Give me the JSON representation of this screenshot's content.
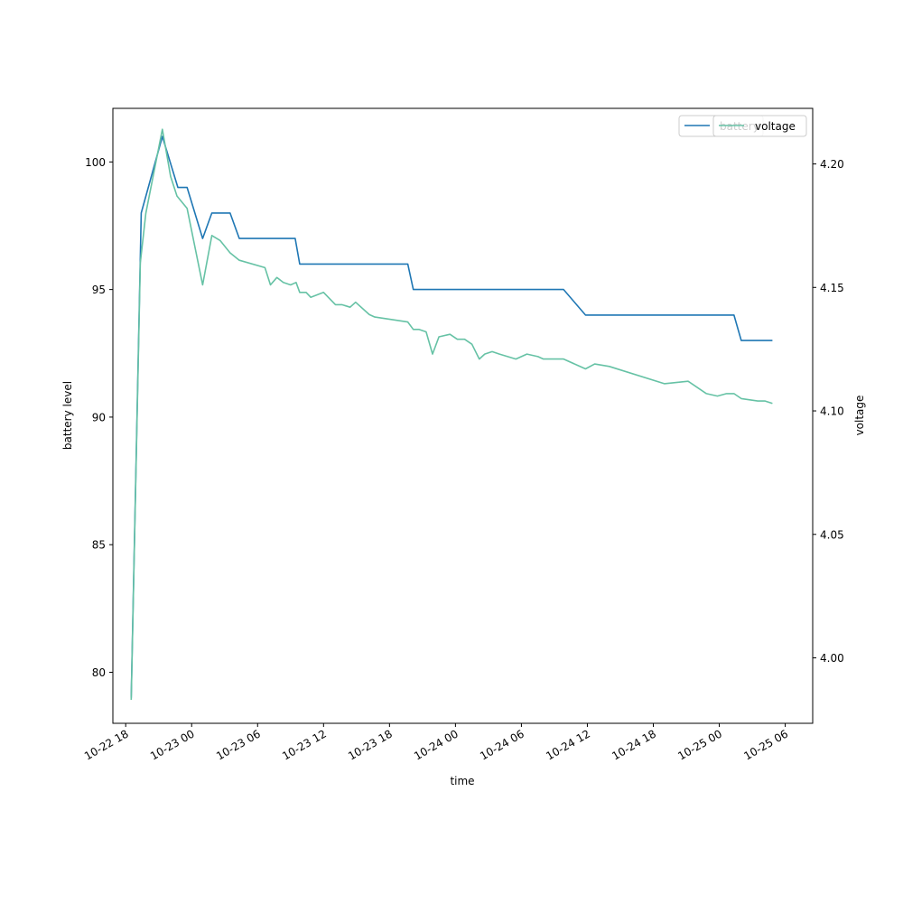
{
  "chart_data": {
    "type": "line",
    "xlabel": "time",
    "ylabel_left": "battery level",
    "ylabel_right": "voltage",
    "legend_placement": "top-right",
    "grid": false,
    "x_axis": {
      "range": [
        "2022-10-22 16:50",
        "2022-10-25 08:30"
      ],
      "ticks": [
        {
          "t": "2022-10-22 18:00",
          "label": "10-22 18"
        },
        {
          "t": "2022-10-23 00:00",
          "label": "10-23 00"
        },
        {
          "t": "2022-10-23 06:00",
          "label": "10-23 06"
        },
        {
          "t": "2022-10-23 12:00",
          "label": "10-23 12"
        },
        {
          "t": "2022-10-23 18:00",
          "label": "10-23 18"
        },
        {
          "t": "2022-10-24 00:00",
          "label": "10-24 00"
        },
        {
          "t": "2022-10-24 06:00",
          "label": "10-24 06"
        },
        {
          "t": "2022-10-24 12:00",
          "label": "10-24 12"
        },
        {
          "t": "2022-10-24 18:00",
          "label": "10-24 18"
        },
        {
          "t": "2022-10-25 00:00",
          "label": "10-25 00"
        },
        {
          "t": "2022-10-25 06:00",
          "label": "10-25 06"
        }
      ]
    },
    "y_left": {
      "range": [
        78,
        102.1
      ],
      "ticks": [
        {
          "v": 80,
          "label": "80"
        },
        {
          "v": 85,
          "label": "85"
        },
        {
          "v": 90,
          "label": "90"
        },
        {
          "v": 95,
          "label": "95"
        },
        {
          "v": 100,
          "label": "100"
        }
      ]
    },
    "y_right": {
      "range": [
        3.9735,
        4.2225
      ],
      "ticks": [
        {
          "v": 4.0,
          "label": "4.00"
        },
        {
          "v": 4.05,
          "label": "4.05"
        },
        {
          "v": 4.1,
          "label": "4.10"
        },
        {
          "v": 4.15,
          "label": "4.15"
        },
        {
          "v": 4.2,
          "label": "4.20"
        }
      ]
    },
    "series": [
      {
        "name": "battery",
        "axis": "left",
        "color": "#1f77b4",
        "x": [
          "2022-10-22 18:30",
          "2022-10-22 19:25",
          "2022-10-22 21:20",
          "2022-10-22 22:45",
          "2022-10-22 23:35",
          "2022-10-23 01:00",
          "2022-10-23 01:50",
          "2022-10-23 03:30",
          "2022-10-23 04:20",
          "2022-10-23 09:25",
          "2022-10-23 09:50",
          "2022-10-23 19:40",
          "2022-10-23 20:10",
          "2022-10-24 09:50",
          "2022-10-24 11:50",
          "2022-10-25 01:20",
          "2022-10-25 02:00",
          "2022-10-25 04:50"
        ],
        "values": [
          79,
          98,
          101,
          99,
          99,
          97,
          98,
          98,
          97,
          97,
          96,
          96,
          95,
          95,
          94,
          94,
          93,
          93
        ]
      },
      {
        "name": "voltage",
        "axis": "right",
        "color": "#66c2a5",
        "x": [
          "2022-10-22 18:30",
          "2022-10-22 19:20",
          "2022-10-22 19:50",
          "2022-10-22 21:20",
          "2022-10-22 22:05",
          "2022-10-22 22:40",
          "2022-10-22 23:35",
          "2022-10-23 01:00",
          "2022-10-23 01:50",
          "2022-10-23 02:35",
          "2022-10-23 03:30",
          "2022-10-23 04:20",
          "2022-10-23 06:40",
          "2022-10-23 07:10",
          "2022-10-23 07:45",
          "2022-10-23 08:20",
          "2022-10-23 09:00",
          "2022-10-23 09:30",
          "2022-10-23 09:50",
          "2022-10-23 10:25",
          "2022-10-23 10:50",
          "2022-10-23 12:00",
          "2022-10-23 13:05",
          "2022-10-23 13:40",
          "2022-10-23 14:25",
          "2022-10-23 14:55",
          "2022-10-23 16:10",
          "2022-10-23 16:40",
          "2022-10-23 19:40",
          "2022-10-23 20:10",
          "2022-10-23 20:40",
          "2022-10-23 21:20",
          "2022-10-23 21:55",
          "2022-10-23 22:30",
          "2022-10-23 23:30",
          "2022-10-24 00:10",
          "2022-10-24 00:50",
          "2022-10-24 01:30",
          "2022-10-24 02:10",
          "2022-10-24 02:40",
          "2022-10-24 03:20",
          "2022-10-24 04:00",
          "2022-10-24 05:30",
          "2022-10-24 06:30",
          "2022-10-24 07:30",
          "2022-10-24 08:00",
          "2022-10-24 09:50",
          "2022-10-24 11:50",
          "2022-10-24 12:40",
          "2022-10-24 14:00",
          "2022-10-24 19:00",
          "2022-10-24 21:10",
          "2022-10-24 22:50",
          "2022-10-24 23:50",
          "2022-10-25 00:40",
          "2022-10-25 01:20",
          "2022-10-25 02:00",
          "2022-10-25 03:30",
          "2022-10-25 04:10",
          "2022-10-25 04:50"
        ],
        "values": [
          3.983,
          4.16,
          4.18,
          4.214,
          4.195,
          4.187,
          4.182,
          4.151,
          4.171,
          4.169,
          4.164,
          4.161,
          4.158,
          4.151,
          4.154,
          4.152,
          4.151,
          4.152,
          4.148,
          4.148,
          4.146,
          4.148,
          4.143,
          4.143,
          4.142,
          4.144,
          4.139,
          4.138,
          4.136,
          4.133,
          4.133,
          4.132,
          4.123,
          4.13,
          4.131,
          4.129,
          4.129,
          4.127,
          4.121,
          4.123,
          4.124,
          4.123,
          4.121,
          4.123,
          4.122,
          4.121,
          4.121,
          4.117,
          4.119,
          4.118,
          4.111,
          4.112,
          4.107,
          4.106,
          4.107,
          4.107,
          4.105,
          4.104,
          4.104,
          4.103
        ]
      }
    ]
  }
}
